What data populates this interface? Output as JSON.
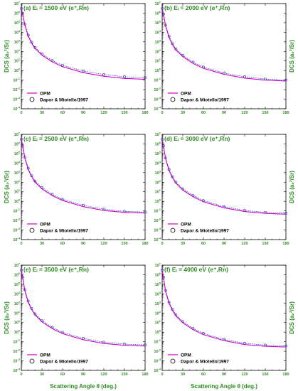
{
  "colors": {
    "opm": "#cc00cc",
    "exp": "#2233aa",
    "text": "#2e8b22"
  },
  "common": {
    "xlabel": "Scattering Angle θ (deg.)",
    "ylabel": "DCS (a₀²/Sr)",
    "xticks": [
      "0",
      "30",
      "60",
      "90",
      "120",
      "150",
      "180"
    ],
    "yexp_min": -4,
    "yexp_max": 7,
    "legend": {
      "opm": "OPM",
      "exp": "Dapor & Miotello/1997"
    }
  },
  "chart_data": [
    {
      "type": "line",
      "title": "(a) Eᵢ = 1500 eV (e⁺,Rn)",
      "ylabel_side": "left",
      "xlim": [
        0,
        180
      ],
      "ylim": [
        0.0001,
        10000000
      ],
      "yscale": "log",
      "series": [
        {
          "name": "OPM",
          "x": [
            0,
            2,
            5,
            10,
            15,
            20,
            30,
            45,
            60,
            90,
            120,
            150,
            180
          ],
          "y": [
            3000000,
            800000,
            60000,
            4000,
            700,
            200,
            40,
            8,
            2.5,
            0.6,
            0.25,
            0.15,
            0.12
          ]
        },
        {
          "name": "Dapor & Miotello/1997",
          "x": [
            0,
            2,
            5,
            10,
            15,
            20,
            30,
            45,
            60,
            90,
            120,
            150,
            180
          ],
          "y": [
            3000000,
            900000,
            70000,
            5000,
            900,
            260,
            55,
            11,
            3.5,
            0.9,
            0.38,
            0.22,
            0.18
          ]
        }
      ]
    },
    {
      "type": "line",
      "title": "(b) Eᵢ = 2000 eV (e⁺,Rn)",
      "ylabel_side": "right",
      "xlim": [
        0,
        180
      ],
      "ylim": [
        0.0001,
        10000000
      ],
      "yscale": "log",
      "series": [
        {
          "name": "OPM",
          "x": [
            0,
            2,
            5,
            10,
            15,
            20,
            30,
            45,
            60,
            90,
            120,
            150,
            180
          ],
          "y": [
            3000000,
            700000,
            45000,
            3000,
            500,
            140,
            28,
            5.5,
            1.7,
            0.4,
            0.16,
            0.1,
            0.08
          ]
        },
        {
          "name": "Dapor & Miotello/1997",
          "x": [
            0,
            2,
            5,
            10,
            15,
            20,
            30,
            45,
            60,
            90,
            120,
            150,
            180
          ],
          "y": [
            3000000,
            800000,
            55000,
            3800,
            650,
            180,
            38,
            7.5,
            2.3,
            0.55,
            0.22,
            0.13,
            0.1
          ]
        }
      ]
    },
    {
      "type": "line",
      "title": "(c) Eᵢ = 2500 eV (e⁺,Rn)",
      "ylabel_side": "left",
      "xlim": [
        0,
        180
      ],
      "ylim": [
        0.0001,
        10000000
      ],
      "yscale": "log",
      "series": [
        {
          "name": "OPM",
          "x": [
            0,
            2,
            5,
            10,
            15,
            20,
            30,
            45,
            60,
            90,
            120,
            150,
            180
          ],
          "y": [
            3000000,
            600000,
            35000,
            2200,
            380,
            100,
            20,
            4,
            1.2,
            0.28,
            0.11,
            0.07,
            0.06
          ]
        },
        {
          "name": "Dapor & Miotello/1997",
          "x": [
            0,
            2,
            5,
            10,
            15,
            20,
            30,
            45,
            60,
            90,
            120,
            150,
            180
          ],
          "y": [
            3000000,
            700000,
            42000,
            2800,
            480,
            130,
            27,
            5.3,
            1.6,
            0.38,
            0.15,
            0.09,
            0.075
          ]
        }
      ]
    },
    {
      "type": "line",
      "title": "(d) Eᵢ = 3000 eV (e⁺,Rn)",
      "ylabel_side": "right",
      "xlim": [
        0,
        180
      ],
      "ylim": [
        0.0001,
        10000000
      ],
      "yscale": "log",
      "series": [
        {
          "name": "OPM",
          "x": [
            0,
            2,
            5,
            10,
            15,
            20,
            30,
            45,
            60,
            90,
            120,
            150,
            180
          ],
          "y": [
            3000000,
            550000,
            28000,
            1700,
            290,
            80,
            15,
            3,
            0.9,
            0.21,
            0.085,
            0.055,
            0.045
          ]
        },
        {
          "name": "Dapor & Miotello/1997",
          "x": [
            0,
            2,
            5,
            10,
            15,
            20,
            30,
            45,
            60,
            90,
            120,
            150,
            180
          ],
          "y": [
            3000000,
            650000,
            34000,
            2200,
            370,
            100,
            20,
            4,
            1.2,
            0.28,
            0.11,
            0.07,
            0.058
          ]
        }
      ]
    },
    {
      "type": "line",
      "title": "(e) Eᵢ = 3500 eV (e⁺,Rn)",
      "ylabel_side": "left",
      "xlim": [
        0,
        180
      ],
      "ylim": [
        0.0001,
        10000000
      ],
      "yscale": "log",
      "series": [
        {
          "name": "OPM",
          "x": [
            0,
            2,
            5,
            10,
            15,
            20,
            30,
            45,
            60,
            90,
            120,
            150,
            180
          ],
          "y": [
            3000000,
            500000,
            22000,
            1300,
            230,
            62,
            12,
            2.3,
            0.7,
            0.16,
            0.065,
            0.042,
            0.035
          ]
        },
        {
          "name": "Dapor & Miotello/1997",
          "x": [
            0,
            2,
            5,
            10,
            15,
            20,
            30,
            45,
            60,
            90,
            120,
            150,
            180
          ],
          "y": [
            3000000,
            600000,
            28000,
            1750,
            300,
            80,
            16,
            3.1,
            0.95,
            0.22,
            0.088,
            0.056,
            0.046
          ]
        }
      ]
    },
    {
      "type": "line",
      "title": "(f) Eᵢ = 4000 eV (e⁺,Rn)",
      "ylabel_side": "right",
      "xlim": [
        0,
        180
      ],
      "ylim": [
        0.0001,
        10000000
      ],
      "yscale": "log",
      "series": [
        {
          "name": "OPM",
          "x": [
            0,
            2,
            5,
            10,
            15,
            20,
            30,
            45,
            60,
            90,
            120,
            150,
            180
          ],
          "y": [
            3000000,
            450000,
            18000,
            1050,
            185,
            50,
            9.5,
            1.8,
            0.55,
            0.13,
            0.05,
            0.033,
            0.028
          ]
        },
        {
          "name": "Dapor & Miotello/1997",
          "x": [
            0,
            2,
            5,
            10,
            15,
            20,
            30,
            45,
            60,
            90,
            120,
            150,
            180
          ],
          "y": [
            3000000,
            550000,
            23000,
            1400,
            240,
            65,
            12.5,
            2.4,
            0.75,
            0.17,
            0.068,
            0.044,
            0.036
          ]
        }
      ]
    }
  ]
}
